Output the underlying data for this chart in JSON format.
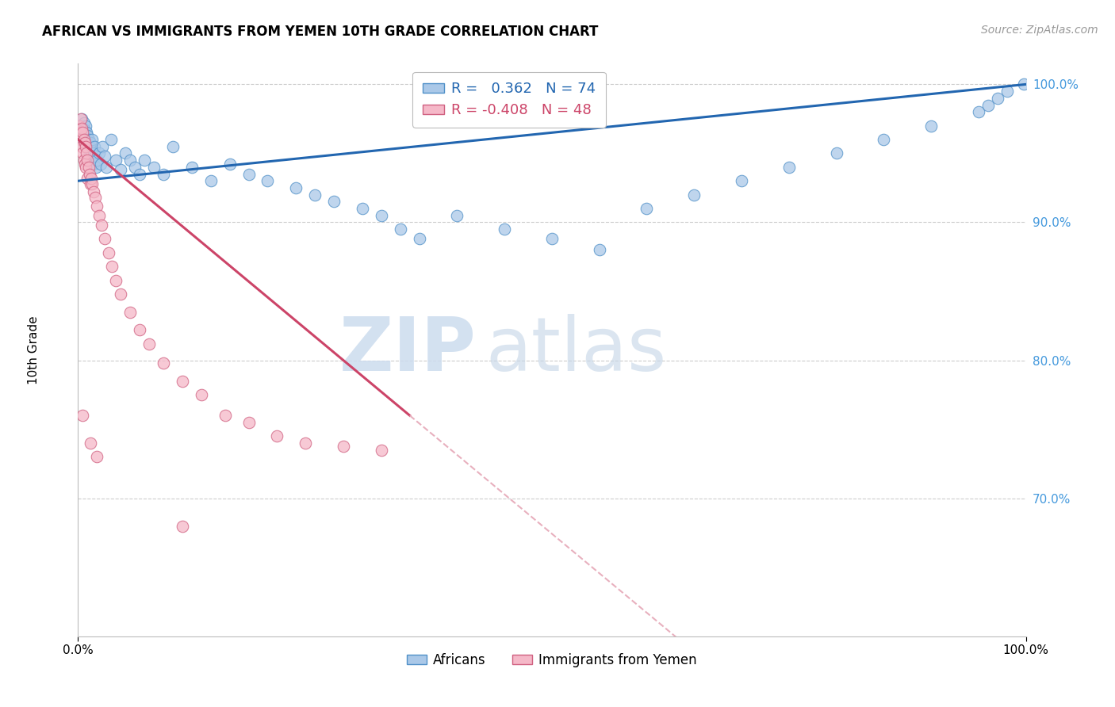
{
  "title": "AFRICAN VS IMMIGRANTS FROM YEMEN 10TH GRADE CORRELATION CHART",
  "source": "Source: ZipAtlas.com",
  "ylabel": "10th Grade",
  "xlim": [
    0.0,
    1.0
  ],
  "ylim": [
    0.6,
    1.015
  ],
  "y_ticks": [
    0.7,
    0.8,
    0.9,
    1.0
  ],
  "y_tick_labels": [
    "70.0%",
    "80.0%",
    "90.0%",
    "100.0%"
  ],
  "legend_r_african": "0.362",
  "legend_n_african": "74",
  "legend_r_yemen": "-0.408",
  "legend_n_yemen": "48",
  "african_color": "#aac8e8",
  "african_edge_color": "#5090c8",
  "african_line_color": "#2266b0",
  "yemen_color": "#f5b8c8",
  "yemen_edge_color": "#d06080",
  "yemen_line_color": "#cc4468",
  "yemen_ext_color": "#e8b0be",
  "african_x": [
    0.002,
    0.003,
    0.004,
    0.004,
    0.005,
    0.005,
    0.006,
    0.006,
    0.007,
    0.007,
    0.008,
    0.008,
    0.009,
    0.009,
    0.01,
    0.01,
    0.011,
    0.011,
    0.012,
    0.012,
    0.013,
    0.013,
    0.014,
    0.015,
    0.015,
    0.016,
    0.017,
    0.018,
    0.019,
    0.02,
    0.022,
    0.024,
    0.026,
    0.028,
    0.03,
    0.035,
    0.04,
    0.045,
    0.05,
    0.055,
    0.06,
    0.065,
    0.07,
    0.08,
    0.09,
    0.1,
    0.12,
    0.14,
    0.16,
    0.18,
    0.2,
    0.23,
    0.25,
    0.27,
    0.3,
    0.32,
    0.34,
    0.36,
    0.4,
    0.45,
    0.5,
    0.55,
    0.6,
    0.65,
    0.7,
    0.75,
    0.8,
    0.85,
    0.9,
    0.95,
    0.96,
    0.97,
    0.98,
    0.998
  ],
  "african_y": [
    0.965,
    0.97,
    0.962,
    0.975,
    0.96,
    0.968,
    0.963,
    0.972,
    0.958,
    0.967,
    0.96,
    0.97,
    0.955,
    0.965,
    0.958,
    0.963,
    0.952,
    0.96,
    0.955,
    0.948,
    0.952,
    0.958,
    0.945,
    0.95,
    0.96,
    0.942,
    0.955,
    0.948,
    0.94,
    0.945,
    0.95,
    0.942,
    0.955,
    0.948,
    0.94,
    0.96,
    0.945,
    0.938,
    0.95,
    0.945,
    0.94,
    0.935,
    0.945,
    0.94,
    0.935,
    0.955,
    0.94,
    0.93,
    0.942,
    0.935,
    0.93,
    0.925,
    0.92,
    0.915,
    0.91,
    0.905,
    0.895,
    0.888,
    0.905,
    0.895,
    0.888,
    0.88,
    0.91,
    0.92,
    0.93,
    0.94,
    0.95,
    0.96,
    0.97,
    0.98,
    0.985,
    0.99,
    0.995,
    1.0
  ],
  "yemen_x": [
    0.001,
    0.002,
    0.003,
    0.003,
    0.004,
    0.004,
    0.005,
    0.005,
    0.006,
    0.006,
    0.007,
    0.007,
    0.008,
    0.008,
    0.009,
    0.01,
    0.01,
    0.011,
    0.012,
    0.013,
    0.014,
    0.015,
    0.016,
    0.018,
    0.02,
    0.022,
    0.025,
    0.028,
    0.032,
    0.036,
    0.04,
    0.045,
    0.055,
    0.065,
    0.075,
    0.09,
    0.11,
    0.13,
    0.155,
    0.18,
    0.21,
    0.24,
    0.28,
    0.32,
    0.005,
    0.013,
    0.02,
    0.11
  ],
  "yemen_y": [
    0.97,
    0.965,
    0.975,
    0.96,
    0.968,
    0.955,
    0.965,
    0.95,
    0.96,
    0.945,
    0.958,
    0.942,
    0.955,
    0.94,
    0.95,
    0.945,
    0.932,
    0.94,
    0.935,
    0.928,
    0.932,
    0.928,
    0.922,
    0.918,
    0.912,
    0.905,
    0.898,
    0.888,
    0.878,
    0.868,
    0.858,
    0.848,
    0.835,
    0.822,
    0.812,
    0.798,
    0.785,
    0.775,
    0.76,
    0.755,
    0.745,
    0.74,
    0.738,
    0.735,
    0.76,
    0.74,
    0.73,
    0.68
  ]
}
